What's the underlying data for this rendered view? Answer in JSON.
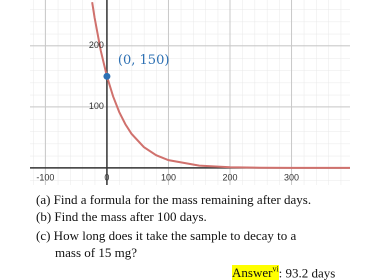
{
  "chart_data": {
    "type": "line",
    "x": [
      -24,
      -20,
      -10,
      0,
      10,
      20,
      30,
      40,
      60,
      80,
      100,
      150,
      200,
      250,
      300,
      395
    ],
    "series": [
      {
        "color": "#d0716d",
        "values": [
          271.4,
          245.9,
          192.0,
          150,
          117.2,
          91.5,
          71.5,
          55.8,
          34.1,
          20.8,
          12.7,
          3.7,
          1.1,
          0.3,
          0.1,
          0.0
        ]
      }
    ],
    "point": {
      "x": 0,
      "y": 150,
      "color": "#2d70b3"
    },
    "annotation": "(0, 150)",
    "xlim": [
      -125,
      395
    ],
    "ylim": [
      -28,
      275
    ],
    "xticks": [
      -100,
      0,
      100,
      200,
      300
    ],
    "yticks": [
      100,
      200
    ],
    "grid": true
  },
  "questions": [
    "(a) Find a formula for the mass remaining after days.",
    "(b) Find the mass after 100 days.",
    "(c) How long does it take the sample to decay to a",
    "mass of 15 mg?"
  ],
  "answer": {
    "label": "Answer",
    "note": "vi",
    "text": ": 93.2 days"
  }
}
